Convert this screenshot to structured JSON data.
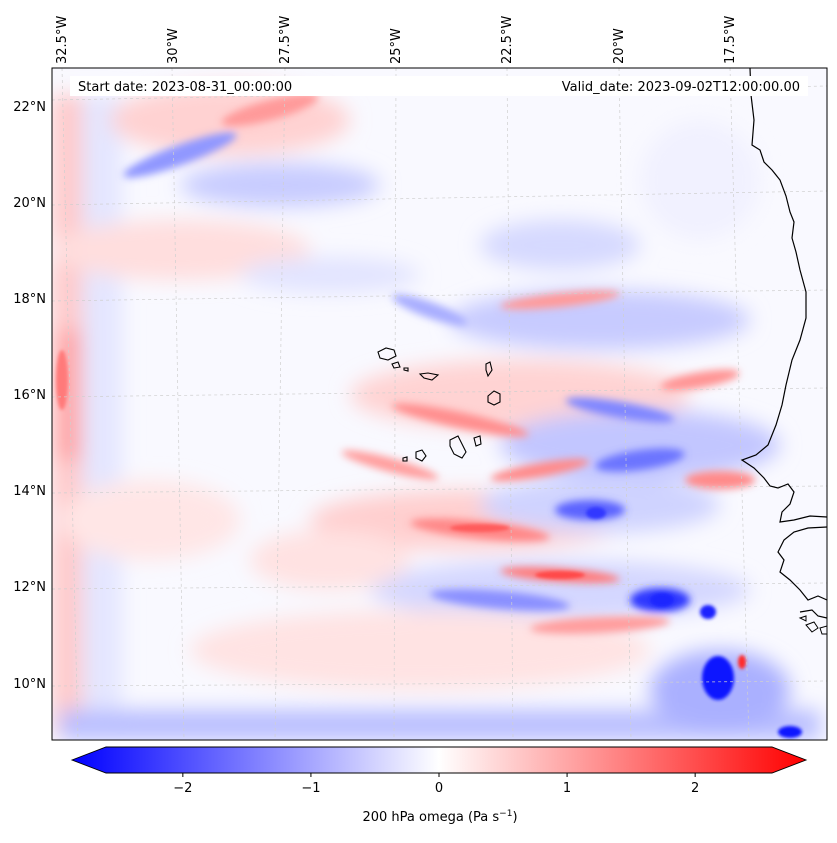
{
  "header": {
    "start_date": "Start date: 2023-08-31_00:00:00",
    "valid_date": "Valid_date: 2023-09-02T12:00:00.00"
  },
  "map": {
    "projection": "lambert-conformal",
    "field": "200 hPa omega",
    "lon_labels": [
      "32.5°W",
      "30°W",
      "27.5°W",
      "25°W",
      "22.5°W",
      "20°W",
      "17.5°W"
    ],
    "lat_labels": [
      "22°N",
      "20°N",
      "18°N",
      "16°N",
      "14°N",
      "12°N",
      "10°N"
    ],
    "gridlines": "dashed",
    "features": [
      "west-africa-coastline",
      "cape-verde-islands"
    ]
  },
  "colorbar": {
    "ticks": [
      "−2",
      "−1",
      "0",
      "1",
      "2"
    ],
    "tick_values": [
      -2,
      -1,
      0,
      1,
      2
    ],
    "range": [
      -2.6,
      2.6
    ],
    "label_main": "200 hPa omega (Pa s",
    "label_exp": "−1",
    "label_end": ")",
    "colormap": "bwr",
    "extend": "both",
    "colors": {
      "negative": "#0000ff",
      "zero": "#ffffff",
      "positive": "#ff0000"
    }
  }
}
